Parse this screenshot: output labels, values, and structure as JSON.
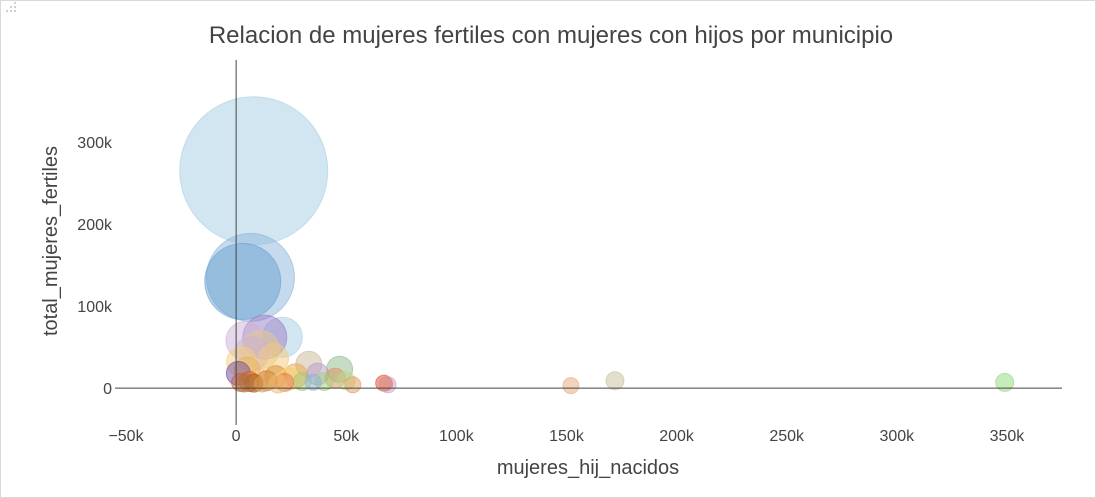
{
  "chart_data": {
    "type": "scatter",
    "title": "Relacion de mujeres fertiles con mujeres con hijos por municipio",
    "xlabel": "mujeres_hij_nacidos",
    "ylabel": "total_mujeres_fertiles",
    "xlim": [
      -55000,
      375000
    ],
    "ylim": [
      -45000,
      400000
    ],
    "x_ticks": [
      -50000,
      0,
      50000,
      100000,
      150000,
      200000,
      250000,
      300000,
      350000
    ],
    "x_tick_labels": [
      "−50k",
      "0",
      "50k",
      "100k",
      "150k",
      "200k",
      "250k",
      "300k",
      "350k"
    ],
    "y_ticks": [
      0,
      100000,
      200000,
      300000
    ],
    "y_tick_labels": [
      "0",
      "100k",
      "200k",
      "300k"
    ],
    "grid": false,
    "legend": "none",
    "marker_note": "bubble area proportional to total_mujeres_fertiles",
    "points": [
      {
        "x": 8000,
        "y": 265000,
        "r": 74,
        "color": "#a6cee3"
      },
      {
        "x": 6500,
        "y": 135000,
        "r": 44,
        "color": "#8cb6dc"
      },
      {
        "x": 3000,
        "y": 130000,
        "r": 38,
        "color": "#6a9fd0"
      },
      {
        "x": 21000,
        "y": 62000,
        "r": 20,
        "color": "#a6cee3"
      },
      {
        "x": 13000,
        "y": 62000,
        "r": 22,
        "color": "#9a7cc6"
      },
      {
        "x": 4000,
        "y": 58000,
        "r": 19,
        "color": "#cab2d6"
      },
      {
        "x": 11000,
        "y": 47000,
        "r": 19,
        "color": "#e8c98a"
      },
      {
        "x": 7000,
        "y": 42000,
        "r": 17,
        "color": "#cab2d6"
      },
      {
        "x": 17000,
        "y": 36000,
        "r": 15,
        "color": "#f3c97a"
      },
      {
        "x": 2500,
        "y": 32000,
        "r": 15,
        "color": "#f6d07a"
      },
      {
        "x": 33000,
        "y": 29000,
        "r": 13,
        "color": "#c9b896"
      },
      {
        "x": 47000,
        "y": 23000,
        "r": 13,
        "color": "#8fb98a"
      },
      {
        "x": 5000,
        "y": 22000,
        "r": 13,
        "color": "#e8b44f"
      },
      {
        "x": 1000,
        "y": 18000,
        "r": 12,
        "color": "#6f4a9e"
      },
      {
        "x": 27000,
        "y": 15000,
        "r": 12,
        "color": "#e9a54a"
      },
      {
        "x": 18000,
        "y": 14000,
        "r": 11,
        "color": "#d98c2b"
      },
      {
        "x": 37000,
        "y": 17000,
        "r": 11,
        "color": "#b59acf"
      },
      {
        "x": 24000,
        "y": 11000,
        "r": 11,
        "color": "#f3d36c"
      },
      {
        "x": 45000,
        "y": 12000,
        "r": 10,
        "color": "#dd8e58"
      },
      {
        "x": 10000,
        "y": 10000,
        "r": 11,
        "color": "#f2b066"
      },
      {
        "x": 14000,
        "y": 9000,
        "r": 10,
        "color": "#d07f2e"
      },
      {
        "x": 6000,
        "y": 8000,
        "r": 10,
        "color": "#c86020"
      },
      {
        "x": 2000,
        "y": 7000,
        "r": 9,
        "color": "#c75d3a"
      },
      {
        "x": 40000,
        "y": 8000,
        "r": 9,
        "color": "#9bcf7a"
      },
      {
        "x": 30000,
        "y": 8000,
        "r": 9,
        "color": "#a0c878"
      },
      {
        "x": 50000,
        "y": 9000,
        "r": 9,
        "color": "#b7d98a"
      },
      {
        "x": 35000,
        "y": 7000,
        "r": 8,
        "color": "#8bb3d6"
      },
      {
        "x": 22000,
        "y": 7000,
        "r": 9,
        "color": "#e67854"
      },
      {
        "x": 8000,
        "y": 6000,
        "r": 9,
        "color": "#a65a1e"
      },
      {
        "x": 3500,
        "y": 5000,
        "r": 8,
        "color": "#b07a3f"
      },
      {
        "x": 12000,
        "y": 5000,
        "r": 8,
        "color": "#e0a25a"
      },
      {
        "x": 53000,
        "y": 4000,
        "r": 8,
        "color": "#e69b5c"
      },
      {
        "x": 19000,
        "y": 5000,
        "r": 9,
        "color": "#f0bb6b"
      },
      {
        "x": 67000,
        "y": 6000,
        "r": 8,
        "color": "#d95030"
      },
      {
        "x": 69000,
        "y": 4000,
        "r": 8,
        "color": "#c8a4d8"
      },
      {
        "x": 68000,
        "y": 5000,
        "r": 7,
        "color": "#e88a64"
      },
      {
        "x": 152000,
        "y": 3000,
        "r": 8,
        "color": "#e7a77a"
      },
      {
        "x": 172000,
        "y": 9000,
        "r": 9,
        "color": "#c9bf9c"
      },
      {
        "x": 349000,
        "y": 7000,
        "r": 9,
        "color": "#8fd97a"
      }
    ]
  }
}
